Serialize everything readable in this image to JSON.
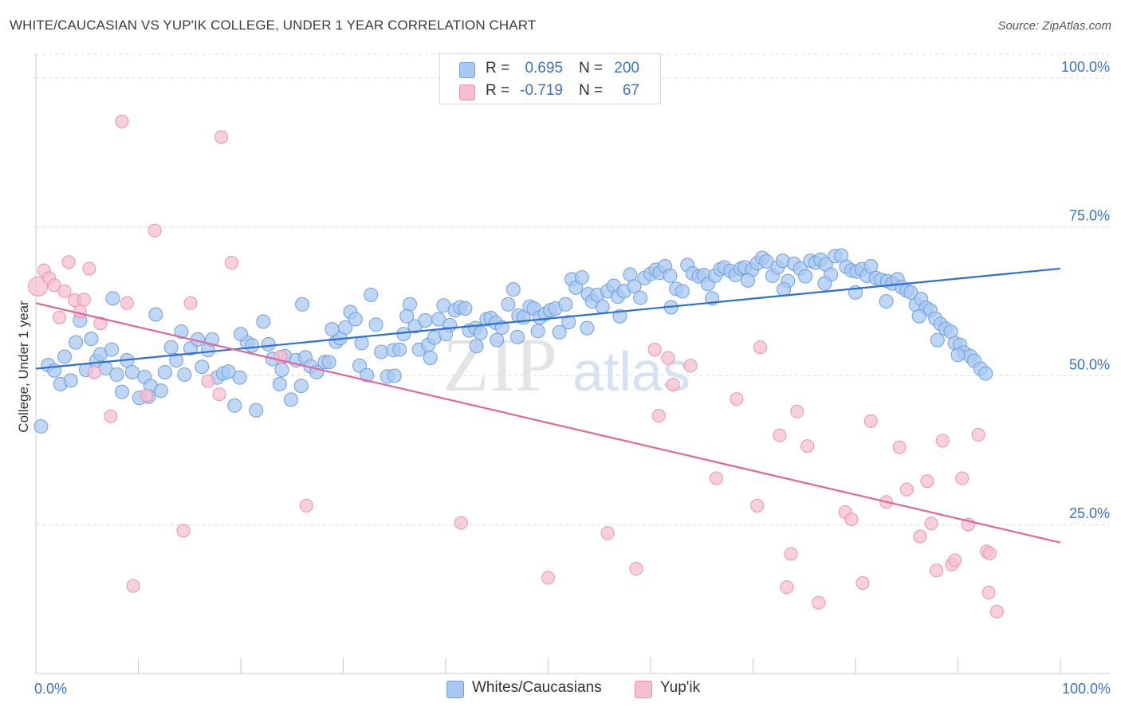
{
  "header": {
    "title": "WHITE/CAUCASIAN VS YUP'IK COLLEGE, UNDER 1 YEAR CORRELATION CHART",
    "source": "Source: ZipAtlas.com"
  },
  "watermark": {
    "zip": "ZIP",
    "atlas": "atlas"
  },
  "legend": {
    "rows": [
      {
        "r_label": "R =",
        "r_value": "0.695",
        "n_label": "N =",
        "n_value": "200"
      },
      {
        "r_label": "R =",
        "r_value": "-0.719",
        "n_label": "N =",
        "n_value": "67"
      }
    ]
  },
  "bottom_legend": {
    "series1": "Whites/Caucasians",
    "series2": "Yup'ik"
  },
  "colors": {
    "blue_fill": "#a9c8f0",
    "blue_stroke": "#6e9fe0",
    "blue_line": "#2f6fd0",
    "pink_fill": "#f6bfd0",
    "pink_stroke": "#ec92ae",
    "pink_line": "#e0679a",
    "tick_label": "#3a72c8",
    "grid": "#dcdcdc"
  },
  "chart_data": {
    "type": "scatter",
    "title": "WHITE/CAUCASIAN VS YUP'IK COLLEGE, UNDER 1 YEAR CORRELATION CHART",
    "xlabel": "",
    "ylabel": "College, Under 1 year",
    "xlim": [
      0,
      100
    ],
    "ylim": [
      0,
      104
    ],
    "x_tick_labels": [
      "0.0%",
      "100.0%"
    ],
    "y_ticks": [
      {
        "value": 25,
        "label": "25.0%"
      },
      {
        "value": 50,
        "label": "50.0%"
      },
      {
        "value": 75,
        "label": "75.0%"
      },
      {
        "value": 100,
        "label": "100.0%"
      }
    ],
    "grid": true,
    "series": [
      {
        "name": "Whites/Caucasians",
        "r": 0.695,
        "n": 200,
        "trend": {
          "x": [
            0,
            100
          ],
          "y": [
            51.2,
            68.0
          ]
        },
        "points": [
          [
            0.5,
            41.5
          ],
          [
            1.2,
            51.8
          ],
          [
            1.8,
            50.9
          ],
          [
            2.4,
            48.6
          ],
          [
            2.8,
            53.2
          ],
          [
            3.4,
            49.2
          ],
          [
            3.9,
            55.6
          ],
          [
            4.3,
            59.3
          ],
          [
            4.9,
            51.0
          ],
          [
            5.4,
            56.2
          ],
          [
            5.9,
            52.5
          ],
          [
            6.3,
            53.6
          ],
          [
            6.8,
            51.3
          ],
          [
            7.4,
            54.4
          ],
          [
            7.9,
            50.2
          ],
          [
            8.4,
            47.3
          ],
          [
            8.9,
            52.6
          ],
          [
            9.4,
            50.6
          ],
          [
            10.1,
            46.3
          ],
          [
            10.6,
            49.8
          ],
          [
            11.2,
            48.3
          ],
          [
            11.7,
            60.3
          ],
          [
            12.2,
            47.5
          ],
          [
            12.6,
            50.6
          ],
          [
            13.2,
            54.8
          ],
          [
            13.7,
            52.6
          ],
          [
            14.2,
            57.4
          ],
          [
            14.5,
            50.2
          ],
          [
            15.1,
            54.6
          ],
          [
            15.8,
            56.1
          ],
          [
            16.2,
            51.5
          ],
          [
            16.8,
            54.3
          ],
          [
            17.2,
            56.1
          ],
          [
            17.7,
            49.7
          ],
          [
            18.3,
            50.4
          ],
          [
            18.8,
            50.7
          ],
          [
            19.4,
            45.0
          ],
          [
            19.9,
            49.7
          ],
          [
            20.6,
            55.6
          ],
          [
            21.1,
            55.1
          ],
          [
            21.5,
            44.2
          ],
          [
            22.2,
            59.1
          ],
          [
            22.7,
            55.3
          ],
          [
            23.1,
            52.8
          ],
          [
            23.8,
            48.6
          ],
          [
            24.3,
            53.3
          ],
          [
            24.9,
            46.0
          ],
          [
            25.4,
            52.6
          ],
          [
            25.9,
            48.3
          ],
          [
            26.3,
            53.1
          ],
          [
            26.8,
            51.6
          ],
          [
            27.4,
            50.6
          ],
          [
            28.2,
            52.3
          ],
          [
            28.6,
            52.3
          ],
          [
            29.3,
            55.7
          ],
          [
            29.7,
            56.3
          ],
          [
            30.2,
            58.1
          ],
          [
            30.7,
            60.7
          ],
          [
            31.2,
            59.5
          ],
          [
            31.6,
            51.7
          ],
          [
            32.3,
            50.1
          ],
          [
            32.7,
            63.6
          ],
          [
            33.2,
            58.6
          ],
          [
            33.7,
            54.0
          ],
          [
            34.3,
            49.9
          ],
          [
            34.9,
            54.3
          ],
          [
            35.5,
            54.4
          ],
          [
            35.9,
            57.0
          ],
          [
            36.5,
            62.0
          ],
          [
            37.0,
            58.3
          ],
          [
            37.4,
            54.4
          ],
          [
            38.0,
            59.3
          ],
          [
            38.3,
            55.2
          ],
          [
            38.9,
            56.4
          ],
          [
            39.3,
            59.5
          ],
          [
            39.8,
            61.8
          ],
          [
            40.4,
            58.5
          ],
          [
            40.9,
            61.0
          ],
          [
            41.4,
            61.5
          ],
          [
            41.9,
            61.3
          ],
          [
            42.3,
            57.6
          ],
          [
            42.9,
            58.0
          ],
          [
            43.4,
            57.2
          ],
          [
            44.0,
            59.5
          ],
          [
            44.4,
            59.7
          ],
          [
            44.9,
            58.9
          ],
          [
            45.5,
            58.1
          ],
          [
            46.1,
            62.0
          ],
          [
            46.6,
            64.5
          ],
          [
            47.1,
            60.1
          ],
          [
            47.6,
            59.8
          ],
          [
            48.2,
            61.6
          ],
          [
            48.6,
            61.3
          ],
          [
            49.2,
            59.8
          ],
          [
            49.7,
            60.4
          ],
          [
            50.2,
            61.0
          ],
          [
            50.7,
            61.3
          ],
          [
            51.1,
            57.3
          ],
          [
            51.7,
            62.0
          ],
          [
            52.3,
            66.2
          ],
          [
            52.7,
            64.8
          ],
          [
            53.3,
            66.5
          ],
          [
            53.9,
            63.7
          ],
          [
            54.3,
            62.5
          ],
          [
            54.8,
            63.6
          ],
          [
            55.3,
            61.6
          ],
          [
            55.8,
            64.2
          ],
          [
            56.4,
            65.1
          ],
          [
            56.8,
            63.3
          ],
          [
            57.4,
            64.2
          ],
          [
            58.0,
            67.0
          ],
          [
            58.4,
            65.0
          ],
          [
            59.0,
            63.1
          ],
          [
            59.4,
            66.4
          ],
          [
            60.0,
            67.1
          ],
          [
            60.5,
            67.8
          ],
          [
            60.9,
            67.3
          ],
          [
            61.4,
            68.4
          ],
          [
            61.9,
            66.8
          ],
          [
            62.5,
            64.6
          ],
          [
            63.1,
            64.2
          ],
          [
            63.6,
            68.6
          ],
          [
            64.1,
            67.2
          ],
          [
            64.7,
            66.7
          ],
          [
            65.2,
            66.9
          ],
          [
            65.6,
            65.4
          ],
          [
            66.3,
            66.8
          ],
          [
            66.8,
            67.9
          ],
          [
            67.2,
            68.2
          ],
          [
            67.8,
            67.6
          ],
          [
            68.3,
            66.9
          ],
          [
            68.8,
            68.0
          ],
          [
            69.2,
            68.2
          ],
          [
            69.9,
            67.8
          ],
          [
            70.4,
            68.9
          ],
          [
            70.9,
            69.8
          ],
          [
            71.3,
            69.2
          ],
          [
            71.9,
            66.8
          ],
          [
            72.4,
            68.2
          ],
          [
            72.9,
            69.3
          ],
          [
            73.4,
            65.9
          ],
          [
            74.0,
            68.8
          ],
          [
            74.6,
            68.0
          ],
          [
            75.1,
            66.7
          ],
          [
            75.6,
            69.3
          ],
          [
            76.1,
            69.0
          ],
          [
            76.6,
            69.5
          ],
          [
            77.1,
            68.7
          ],
          [
            77.6,
            67.0
          ],
          [
            78.0,
            70.1
          ],
          [
            78.6,
            70.2
          ],
          [
            79.1,
            68.3
          ],
          [
            79.6,
            67.7
          ],
          [
            80.1,
            67.5
          ],
          [
            80.6,
            67.9
          ],
          [
            81.1,
            66.8
          ],
          [
            81.5,
            68.4
          ],
          [
            82.0,
            66.4
          ],
          [
            82.5,
            66.1
          ],
          [
            83.1,
            65.9
          ],
          [
            83.6,
            65.5
          ],
          [
            84.1,
            66.2
          ],
          [
            84.5,
            64.9
          ],
          [
            85.0,
            64.3
          ],
          [
            85.4,
            64.0
          ],
          [
            85.9,
            61.9
          ],
          [
            86.4,
            62.9
          ],
          [
            86.9,
            61.4
          ],
          [
            87.3,
            61.0
          ],
          [
            87.8,
            59.6
          ],
          [
            88.3,
            58.7
          ],
          [
            88.8,
            57.9
          ],
          [
            89.3,
            57.4
          ],
          [
            89.7,
            55.5
          ],
          [
            90.2,
            55.2
          ],
          [
            90.6,
            53.9
          ],
          [
            91.2,
            53.3
          ],
          [
            91.6,
            52.5
          ],
          [
            92.2,
            51.2
          ],
          [
            92.7,
            50.4
          ],
          [
            7.5,
            63.0
          ],
          [
            11.0,
            46.5
          ],
          [
            20.0,
            57.0
          ],
          [
            26.0,
            62.0
          ],
          [
            28.9,
            57.8
          ],
          [
            31.8,
            55.5
          ],
          [
            36.2,
            60.0
          ],
          [
            40.0,
            57.0
          ],
          [
            45.0,
            56.0
          ],
          [
            52.0,
            59.0
          ],
          [
            57.0,
            60.0
          ],
          [
            62.0,
            61.5
          ],
          [
            66.0,
            63.0
          ],
          [
            69.5,
            66.0
          ],
          [
            73.0,
            64.5
          ],
          [
            77.0,
            65.5
          ],
          [
            80.0,
            64.0
          ],
          [
            83.0,
            62.5
          ],
          [
            86.2,
            60.0
          ],
          [
            88.0,
            56.0
          ],
          [
            90.0,
            53.5
          ],
          [
            35.0,
            50.0
          ],
          [
            24.0,
            51.0
          ],
          [
            38.5,
            53.0
          ],
          [
            43.0,
            55.0
          ],
          [
            47.0,
            56.5
          ],
          [
            49.0,
            57.5
          ],
          [
            53.8,
            58.0
          ]
        ]
      },
      {
        "name": "Yup'ik",
        "r": -0.719,
        "n": 67,
        "trend": {
          "x": [
            0,
            100
          ],
          "y": [
            62.2,
            22.0
          ]
        },
        "points": [
          [
            0.2,
            65.0
          ],
          [
            0.8,
            67.7
          ],
          [
            1.3,
            66.4
          ],
          [
            1.8,
            65.2
          ],
          [
            2.3,
            59.8
          ],
          [
            2.8,
            64.2
          ],
          [
            3.2,
            69.1
          ],
          [
            3.8,
            62.7
          ],
          [
            4.3,
            60.8
          ],
          [
            4.7,
            62.8
          ],
          [
            5.2,
            68.0
          ],
          [
            5.7,
            50.6
          ],
          [
            6.3,
            58.8
          ],
          [
            7.3,
            43.2
          ],
          [
            8.4,
            92.7
          ],
          [
            8.9,
            62.2
          ],
          [
            9.5,
            14.7
          ],
          [
            10.8,
            46.7
          ],
          [
            11.6,
            74.4
          ],
          [
            14.4,
            24.0
          ],
          [
            15.1,
            62.2
          ],
          [
            16.8,
            49.1
          ],
          [
            17.9,
            46.9
          ],
          [
            18.1,
            90.1
          ],
          [
            19.1,
            69.0
          ],
          [
            23.9,
            53.2
          ],
          [
            26.4,
            28.2
          ],
          [
            41.5,
            25.3
          ],
          [
            50.0,
            16.1
          ],
          [
            55.8,
            23.6
          ],
          [
            58.6,
            17.6
          ],
          [
            60.4,
            54.4
          ],
          [
            60.8,
            43.3
          ],
          [
            61.7,
            53.0
          ],
          [
            62.2,
            48.5
          ],
          [
            63.9,
            51.7
          ],
          [
            66.4,
            32.8
          ],
          [
            68.4,
            46.1
          ],
          [
            70.4,
            28.2
          ],
          [
            70.7,
            54.8
          ],
          [
            72.6,
            40.0
          ],
          [
            73.3,
            14.5
          ],
          [
            73.7,
            20.1
          ],
          [
            74.3,
            44.0
          ],
          [
            75.3,
            38.2
          ],
          [
            76.4,
            11.9
          ],
          [
            79.0,
            27.1
          ],
          [
            79.6,
            25.9
          ],
          [
            80.7,
            15.2
          ],
          [
            81.5,
            42.4
          ],
          [
            83.0,
            28.8
          ],
          [
            84.3,
            38.0
          ],
          [
            85.0,
            30.9
          ],
          [
            86.3,
            23.0
          ],
          [
            87.0,
            32.3
          ],
          [
            87.4,
            25.2
          ],
          [
            87.9,
            17.3
          ],
          [
            88.5,
            39.1
          ],
          [
            89.4,
            18.3
          ],
          [
            89.7,
            19.0
          ],
          [
            90.4,
            32.8
          ],
          [
            91.0,
            25.0
          ],
          [
            92.0,
            40.1
          ],
          [
            92.8,
            20.5
          ],
          [
            93.0,
            13.6
          ],
          [
            93.1,
            20.2
          ],
          [
            93.8,
            10.4
          ]
        ]
      }
    ]
  }
}
